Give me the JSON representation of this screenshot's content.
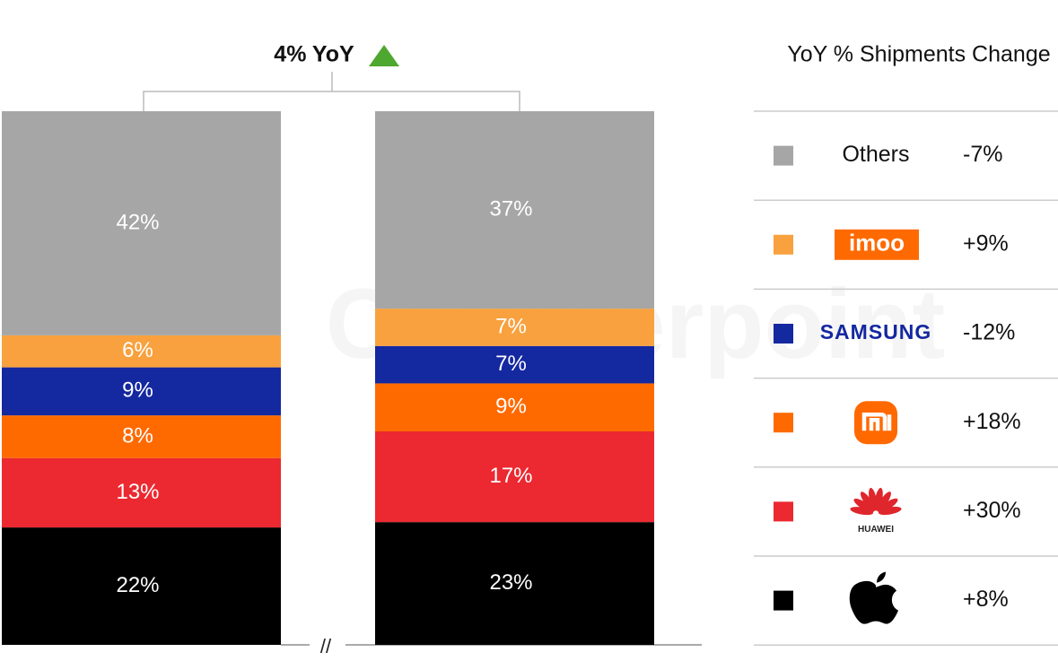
{
  "chart_data": {
    "type": "stacked_bar",
    "title": "4% YoY",
    "watermark": "Counterpoint",
    "axis_break": "//",
    "categories": [
      null,
      null
    ],
    "ylim": [
      0,
      100
    ],
    "legend_title": "YoY % Shipments Change",
    "series": [
      {
        "color": "#000000",
        "values": [
          22,
          23
        ],
        "value_labels": [
          "22%",
          "23%"
        ],
        "change": "+8%"
      },
      {
        "name": "HUAWEI",
        "color": "#ec2830",
        "values": [
          13,
          17
        ],
        "value_labels": [
          "13%",
          "17%"
        ],
        "change": "+30%"
      },
      {
        "color": "#ff6a00",
        "values": [
          8,
          9
        ],
        "value_labels": [
          "8%",
          "9%"
        ],
        "change": "+18%"
      },
      {
        "name": "SAMSUNG",
        "color": "#1428a0",
        "values": [
          9,
          7
        ],
        "value_labels": [
          "9%",
          "7%"
        ],
        "change": "-12%"
      },
      {
        "name": "imoo",
        "color": "#f8a13e",
        "values": [
          6,
          7
        ],
        "value_labels": [
          "6%",
          "7%"
        ],
        "change": "+9%"
      },
      {
        "name": "Others",
        "color": "#a6a6a6",
        "values": [
          42,
          37
        ],
        "value_labels": [
          "42%",
          "37%"
        ],
        "change": "-7%"
      }
    ]
  }
}
